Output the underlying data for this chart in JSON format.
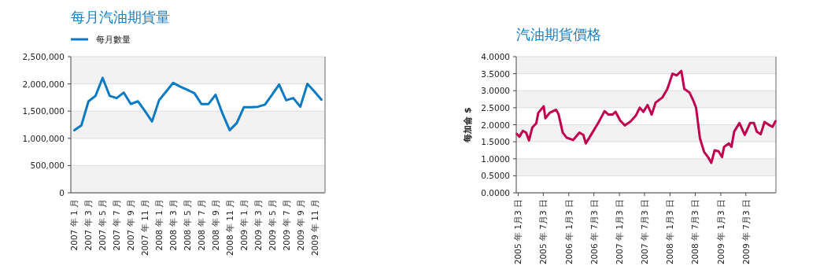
{
  "chart_data": [
    {
      "type": "line",
      "title": "每月汽油期貨量",
      "legend": "top left",
      "grid": "y",
      "categories": [
        "2007 年 1 月",
        null,
        "2007 年 3 月",
        null,
        "2007 年 5 月",
        null,
        "2007 年 7 月",
        null,
        "2007 年 9 月",
        null,
        "2007 年 11 月",
        null,
        "2008 年 1 月",
        null,
        "2008 年 3 月",
        null,
        "2008 年 5 月",
        null,
        "2008 年 7 月",
        null,
        "2008 年 9 月",
        null,
        "2008 年 11 月",
        null,
        "2009 年 1 月",
        null,
        "2009 年 3 月",
        null,
        "2009 年 5 月",
        null,
        "2009 年 7 月",
        null,
        "2009 年 9 月",
        null,
        "2009 年 11 月",
        null
      ],
      "series": [
        {
          "name": "每月數量",
          "color": "#0a7bc2",
          "values": [
            1150000,
            1240000,
            1680000,
            1780000,
            2110000,
            1780000,
            1740000,
            1840000,
            1630000,
            1680000,
            1500000,
            1310000,
            1700000,
            1860000,
            2020000,
            1950000,
            1890000,
            1830000,
            1630000,
            1630000,
            1800000,
            1450000,
            1150000,
            1280000,
            1570000,
            1570000,
            1580000,
            1620000,
            1800000,
            1990000,
            1700000,
            1740000,
            1580000,
            2000000,
            1860000,
            1710000
          ]
        }
      ],
      "ylim": [
        0,
        2500000
      ],
      "yticks": [
        {
          "value": 0,
          "label": "0"
        },
        {
          "value": 500000,
          "label": "500,000"
        },
        {
          "value": 1000000,
          "label": "1,000,000"
        },
        {
          "value": 1500000,
          "label": "1,500,000"
        },
        {
          "value": 2000000,
          "label": "2,000,000"
        },
        {
          "value": 2500000,
          "label": "2,500,000"
        }
      ]
    },
    {
      "type": "line",
      "title": "汽油期貨價格",
      "ylabel": "每加侖 $",
      "grid": "y",
      "x": [
        "2004-12-25",
        "2005-01-12",
        "2005-02-06",
        "2005-03-01",
        "2005-03-22",
        "2005-04-15",
        "2005-05-13",
        "2005-05-28",
        "2005-07-06",
        "2005-07-18",
        "2005-08-18",
        "2005-10-03",
        "2005-10-21",
        "2005-11-20",
        "2005-12-18",
        "2006-02-03",
        "2006-03-21",
        "2006-04-18",
        "2006-05-06",
        "2006-06-15",
        "2006-08-03",
        "2006-09-18",
        "2006-10-15",
        "2006-11-14",
        "2006-12-06",
        "2007-01-09",
        "2007-02-12",
        "2007-03-25",
        "2007-05-03",
        "2007-05-30",
        "2007-06-25",
        "2007-07-25",
        "2007-08-24",
        "2007-09-21",
        "2007-11-09",
        "2007-12-15",
        "2008-01-21",
        "2008-02-20",
        "2008-03-25",
        "2008-04-15",
        "2008-05-22",
        "2008-06-20",
        "2008-07-09",
        "2008-08-06",
        "2008-09-05",
        "2008-10-03",
        "2008-10-27",
        "2008-11-20",
        "2008-12-18",
        "2009-01-12",
        "2009-01-27",
        "2009-03-03",
        "2009-03-21",
        "2009-04-10",
        "2009-05-18",
        "2009-06-25",
        "2009-08-03",
        "2009-08-30",
        "2009-09-20",
        "2009-10-18",
        "2009-11-15",
        "2009-12-23",
        "2010-01-12",
        "2010-02-01"
      ],
      "series": [
        {
          "color": "#c0004f",
          "values": [
            1.73,
            1.65,
            1.82,
            1.77,
            1.54,
            1.92,
            2.04,
            2.35,
            2.54,
            2.19,
            2.35,
            2.44,
            2.31,
            1.77,
            1.62,
            1.55,
            1.77,
            1.7,
            1.45,
            1.72,
            2.05,
            2.4,
            2.3,
            2.3,
            2.38,
            2.12,
            1.98,
            2.1,
            2.28,
            2.5,
            2.38,
            2.58,
            2.3,
            2.65,
            2.8,
            3.05,
            3.5,
            3.45,
            3.58,
            3.05,
            2.95,
            2.7,
            2.5,
            1.6,
            1.2,
            1.05,
            0.88,
            1.25,
            1.22,
            1.05,
            1.35,
            1.45,
            1.35,
            1.8,
            2.05,
            1.7,
            2.05,
            2.05,
            1.8,
            1.72,
            2.08,
            1.98,
            1.94,
            2.1
          ]
        }
      ],
      "xlim": [
        "2004-12-20",
        "2010-02-05"
      ],
      "xticks": [
        {
          "value": "2005-01-03",
          "label": "2005 年 1月3 日"
        },
        {
          "value": "2005-07-03",
          "label": "2005 年 7月3 日"
        },
        {
          "value": "2006-01-03",
          "label": "2006 年 1月3 日"
        },
        {
          "value": "2006-07-03",
          "label": "2006 年 7月3 日"
        },
        {
          "value": "2007-01-03",
          "label": "2007 年 1月3 日"
        },
        {
          "value": "2007-07-03",
          "label": "2007 年 7月3 日"
        },
        {
          "value": "2008-01-03",
          "label": "2008 年 1月3 日"
        },
        {
          "value": "2008-07-03",
          "label": "2008 年 7月3 日"
        },
        {
          "value": "2009-01-03",
          "label": "2009 年 1月3 日"
        },
        {
          "value": "2009-07-03",
          "label": "2009 年 7月3 日"
        }
      ],
      "ylim": [
        0,
        4
      ],
      "yticks": [
        {
          "value": 0,
          "label": "0.0000"
        },
        {
          "value": 0.5,
          "label": "0.5000"
        },
        {
          "value": 1,
          "label": "1.0000"
        },
        {
          "value": 1.5,
          "label": "1.5000"
        },
        {
          "value": 2,
          "label": "2.0000"
        },
        {
          "value": 2.5,
          "label": "2.5000"
        },
        {
          "value": 3,
          "label": "3.0000"
        },
        {
          "value": 3.5,
          "label": "3.5000"
        },
        {
          "value": 4,
          "label": "4.0000"
        }
      ]
    }
  ]
}
